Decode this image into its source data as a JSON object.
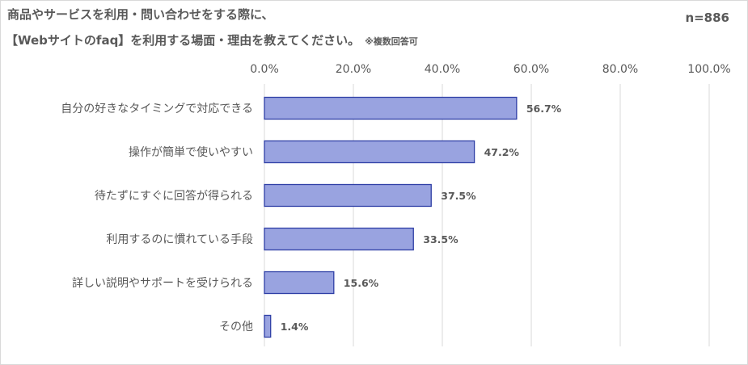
{
  "title_line1": "商品やサービスを利用・問い合わせをする際に、",
  "title_line2": "【Webサイトのfaq】を利用する場面・理由を教えてください。",
  "title_note": "※複数回答可",
  "sample_size": "n=886",
  "colors": {
    "bar_fill": "#99a3e0",
    "bar_stroke": "#2f3fa6",
    "grid": "#d9d9d9",
    "text": "#595959"
  },
  "chart_data": {
    "type": "bar",
    "orientation": "horizontal",
    "categories": [
      "自分の好きなタイミングで対応できる",
      "操作が簡単で使いやすい",
      "待たずにすぐに回答が得られる",
      "利用するのに慣れている手段",
      "詳しい説明やサポートを受けられる",
      "その他"
    ],
    "values": [
      56.7,
      47.2,
      37.5,
      33.5,
      15.6,
      1.4
    ],
    "value_labels": [
      "56.7%",
      "47.2%",
      "37.5%",
      "33.5%",
      "15.6%",
      "1.4%"
    ],
    "xlim": [
      0,
      100
    ],
    "ticks": [
      "0.0%",
      "20.0%",
      "40.0%",
      "60.0%",
      "80.0%",
      "100.0%"
    ],
    "tick_values": [
      0,
      20,
      40,
      60,
      80,
      100
    ],
    "axis_position": "top",
    "grid": true,
    "legend": "none"
  }
}
